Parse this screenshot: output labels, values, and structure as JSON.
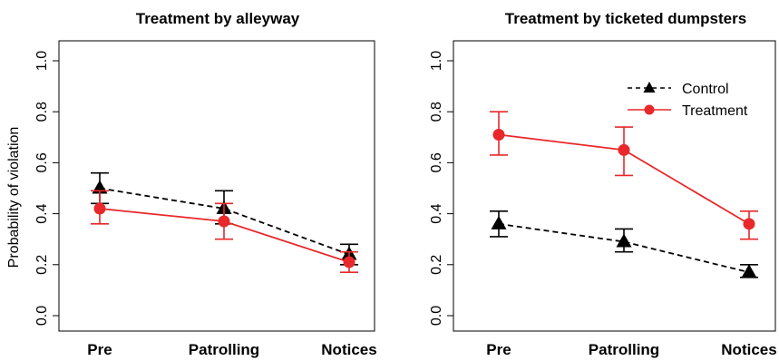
{
  "chart_data": [
    {
      "type": "line",
      "title": "Treatment by alleyway",
      "xlabel": "",
      "ylabel": "Probability of violation",
      "categories": [
        "Pre",
        "Patrolling",
        "Notices"
      ],
      "ylim": [
        0.0,
        1.0
      ],
      "yticks": [
        "0.0",
        "0.2",
        "0.4",
        "0.6",
        "0.8",
        "1.0"
      ],
      "grid": false,
      "legend": null,
      "series": [
        {
          "name": "Control",
          "color": "#000000",
          "marker": "triangle",
          "linestyle": "dashed",
          "values": [
            0.5,
            0.42,
            0.24
          ],
          "lower": [
            0.44,
            0.36,
            0.2
          ],
          "upper": [
            0.56,
            0.49,
            0.28
          ]
        },
        {
          "name": "Treatment",
          "color": "#e8282a",
          "marker": "circle",
          "linestyle": "solid",
          "values": [
            0.42,
            0.37,
            0.21
          ],
          "lower": [
            0.36,
            0.3,
            0.17
          ],
          "upper": [
            0.49,
            0.44,
            0.25
          ]
        }
      ]
    },
    {
      "type": "line",
      "title": "Treatment by ticketed dumpsters",
      "xlabel": "",
      "ylabel": "",
      "categories": [
        "Pre",
        "Patrolling",
        "Notices"
      ],
      "ylim": [
        0.0,
        1.0
      ],
      "yticks": [
        "0.0",
        "0.2",
        "0.4",
        "0.6",
        "0.8",
        "1.0"
      ],
      "grid": false,
      "legend": {
        "position": "top-right",
        "entries": [
          "Control",
          "Treatment"
        ]
      },
      "series": [
        {
          "name": "Control",
          "color": "#000000",
          "marker": "triangle",
          "linestyle": "dashed",
          "values": [
            0.36,
            0.29,
            0.17
          ],
          "lower": [
            0.31,
            0.25,
            0.15
          ],
          "upper": [
            0.41,
            0.34,
            0.2
          ]
        },
        {
          "name": "Treatment",
          "color": "#e8282a",
          "marker": "circle",
          "linestyle": "solid",
          "values": [
            0.71,
            0.65,
            0.36
          ],
          "lower": [
            0.63,
            0.55,
            0.3
          ],
          "upper": [
            0.8,
            0.74,
            0.41
          ]
        }
      ]
    }
  ]
}
